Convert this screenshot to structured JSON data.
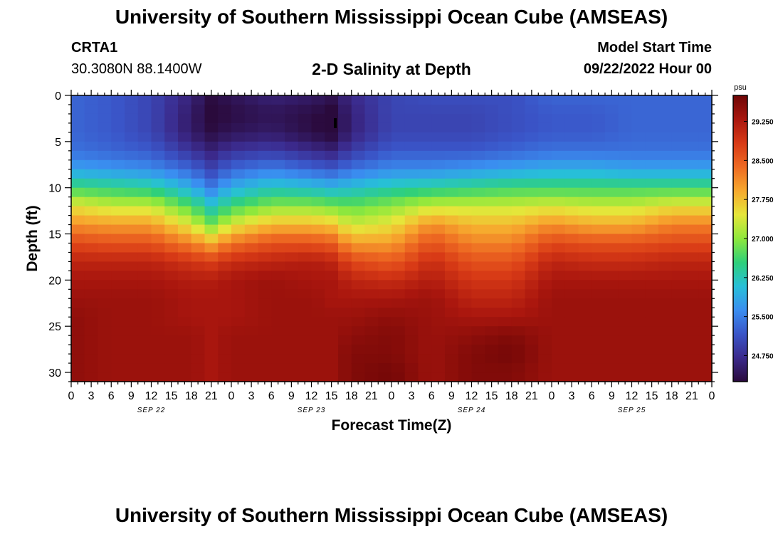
{
  "header": {
    "title": "University of Southern Mississippi Ocean Cube (AMSEAS)",
    "station_id": "CRTA1",
    "coordinates": "30.3080N  88.1400W",
    "subtitle": "2-D Salinity at Depth",
    "model_start_label": "Model Start Time",
    "model_start_value": "09/22/2022 Hour 00"
  },
  "footer": {
    "title": "University of Southern Mississippi Ocean Cube (AMSEAS)"
  },
  "chart_data": {
    "type": "heatmap",
    "title": "2-D Salinity at Depth",
    "xlabel": "Forecast Time(Z)",
    "ylabel": "Depth (ft)",
    "units": "psu",
    "xlim": [
      0,
      96
    ],
    "ylim": [
      31,
      0
    ],
    "x_tick_values": [
      0,
      3,
      6,
      9,
      12,
      15,
      18,
      21,
      24,
      27,
      30,
      33,
      36,
      39,
      42,
      45,
      48,
      51,
      54,
      57,
      60,
      63,
      66,
      69,
      72,
      75,
      78,
      81,
      84,
      87,
      90,
      93,
      96
    ],
    "x_tick_labels": [
      "0",
      "3",
      "6",
      "9",
      "12",
      "15",
      "18",
      "21",
      "0",
      "3",
      "6",
      "9",
      "12",
      "15",
      "18",
      "21",
      "0",
      "3",
      "6",
      "9",
      "12",
      "15",
      "18",
      "21",
      "0",
      "3",
      "6",
      "9",
      "12",
      "15",
      "18",
      "21",
      "0"
    ],
    "y_ticks": [
      0,
      5,
      10,
      15,
      20,
      25,
      30
    ],
    "day_labels": [
      {
        "label": "SEP 22",
        "x": 12
      },
      {
        "label": "SEP 23",
        "x": 36
      },
      {
        "label": "SEP 24",
        "x": 60
      },
      {
        "label": "SEP 25",
        "x": 84
      }
    ],
    "colorbar": {
      "min": 24.25,
      "max": 29.75,
      "tick_values": [
        24.75,
        25.5,
        26.25,
        27.0,
        27.75,
        28.5,
        29.25
      ],
      "tick_labels": [
        "24.750",
        "25.500",
        "26.250",
        "27.000",
        "27.750",
        "28.500",
        "29.250"
      ]
    },
    "colors": [
      "#2a0a3c",
      "#3b2a8c",
      "#3a55c8",
      "#3a8ef0",
      "#27c0d8",
      "#2fd07a",
      "#8fe83c",
      "#e6e63a",
      "#f7a92e",
      "#ee6a22",
      "#d83a16",
      "#a9160e",
      "#6e0606"
    ],
    "depths": [
      0,
      2,
      4,
      6,
      8,
      10,
      12,
      14,
      16,
      18,
      20,
      22,
      24,
      26,
      28,
      30
    ],
    "series": [
      {
        "name": "hour 0",
        "time": 0,
        "values": [
          25.3,
          25.3,
          25.3,
          25.4,
          25.8,
          26.6,
          27.5,
          28.1,
          28.7,
          29.1,
          29.3,
          29.4,
          29.5,
          29.5,
          29.5,
          29.5
        ]
      },
      {
        "name": "hour 6",
        "time": 6,
        "values": [
          25.2,
          25.2,
          25.2,
          25.3,
          25.7,
          26.5,
          27.3,
          28.0,
          28.6,
          29.1,
          29.3,
          29.4,
          29.4,
          29.4,
          29.4,
          29.4
        ]
      },
      {
        "name": "hour 12",
        "time": 12,
        "values": [
          25.0,
          25.0,
          25.0,
          25.2,
          25.6,
          26.4,
          27.3,
          28.0,
          28.6,
          29.1,
          29.3,
          29.4,
          29.4,
          29.4,
          29.4,
          29.4
        ]
      },
      {
        "name": "hour 18",
        "time": 18,
        "values": [
          24.6,
          24.5,
          24.5,
          24.8,
          25.3,
          25.9,
          26.7,
          27.4,
          28.2,
          28.9,
          29.2,
          29.3,
          29.3,
          29.4,
          29.4,
          29.4
        ]
      },
      {
        "name": "hour 21",
        "time": 21,
        "values": [
          24.3,
          24.2,
          24.3,
          24.6,
          25.0,
          25.5,
          26.2,
          26.9,
          27.9,
          28.8,
          29.2,
          29.3,
          29.3,
          29.3,
          29.3,
          29.3
        ]
      },
      {
        "name": "hour 24",
        "time": 24,
        "values": [
          24.4,
          24.3,
          24.4,
          24.8,
          25.3,
          25.9,
          26.6,
          27.4,
          28.3,
          29.0,
          29.3,
          29.3,
          29.3,
          29.4,
          29.4,
          29.4
        ]
      },
      {
        "name": "hour 30",
        "time": 30,
        "values": [
          24.6,
          24.4,
          24.5,
          24.9,
          25.5,
          26.2,
          27.0,
          27.8,
          28.6,
          29.1,
          29.4,
          29.4,
          29.4,
          29.4,
          29.4,
          29.4
        ]
      },
      {
        "name": "hour 36",
        "time": 36,
        "values": [
          24.5,
          24.3,
          24.3,
          24.7,
          25.3,
          26.1,
          27.0,
          27.8,
          28.6,
          29.2,
          29.3,
          29.4,
          29.4,
          29.4,
          29.4,
          29.4
        ]
      },
      {
        "name": "hour 39",
        "time": 39,
        "values": [
          24.4,
          24.2,
          24.2,
          24.6,
          25.2,
          26.0,
          26.9,
          27.7,
          28.5,
          29.1,
          29.3,
          29.3,
          29.4,
          29.4,
          29.4,
          29.4
        ]
      },
      {
        "name": "hour 42",
        "time": 42,
        "values": [
          24.7,
          24.6,
          24.6,
          24.9,
          25.4,
          26.1,
          26.8,
          27.3,
          28.0,
          28.7,
          29.1,
          29.3,
          29.4,
          29.5,
          29.6,
          29.6
        ]
      },
      {
        "name": "hour 48",
        "time": 48,
        "values": [
          25.0,
          25.0,
          25.0,
          25.2,
          25.6,
          26.3,
          27.0,
          27.5,
          28.0,
          28.5,
          29.0,
          29.3,
          29.5,
          29.6,
          29.6,
          29.7
        ]
      },
      {
        "name": "hour 54",
        "time": 54,
        "values": [
          25.1,
          25.0,
          25.0,
          25.2,
          25.6,
          26.4,
          27.3,
          28.1,
          28.6,
          29.0,
          29.2,
          29.4,
          29.4,
          29.4,
          29.4,
          29.4
        ]
      },
      {
        "name": "hour 60",
        "time": 60,
        "values": [
          25.1,
          25.0,
          25.0,
          25.2,
          25.7,
          26.5,
          27.3,
          27.8,
          28.2,
          28.6,
          28.9,
          29.1,
          29.3,
          29.5,
          29.6,
          29.6
        ]
      },
      {
        "name": "hour 66",
        "time": 66,
        "values": [
          25.1,
          25.1,
          25.1,
          25.3,
          25.8,
          26.6,
          27.3,
          27.8,
          28.2,
          28.6,
          28.9,
          29.1,
          29.3,
          29.6,
          29.7,
          29.6
        ]
      },
      {
        "name": "hour 72",
        "time": 72,
        "values": [
          25.3,
          25.2,
          25.2,
          25.4,
          25.9,
          26.6,
          27.4,
          28.1,
          28.7,
          29.1,
          29.3,
          29.4,
          29.4,
          29.4,
          29.4,
          29.4
        ]
      },
      {
        "name": "hour 78",
        "time": 78,
        "values": [
          25.3,
          25.2,
          25.2,
          25.4,
          25.9,
          26.6,
          27.3,
          27.9,
          28.6,
          29.0,
          29.3,
          29.4,
          29.4,
          29.4,
          29.4,
          29.4
        ]
      },
      {
        "name": "hour 84",
        "time": 84,
        "values": [
          25.3,
          25.3,
          25.3,
          25.4,
          25.8,
          26.6,
          27.3,
          27.9,
          28.6,
          29.0,
          29.3,
          29.4,
          29.4,
          29.4,
          29.4,
          29.4
        ]
      },
      {
        "name": "hour 90",
        "time": 90,
        "values": [
          25.3,
          25.3,
          25.3,
          25.4,
          25.8,
          26.6,
          27.5,
          28.2,
          28.7,
          29.1,
          29.3,
          29.4,
          29.4,
          29.4,
          29.4,
          29.4
        ]
      },
      {
        "name": "hour 96",
        "time": 96,
        "values": [
          25.3,
          25.3,
          25.3,
          25.4,
          25.8,
          26.6,
          27.5,
          28.2,
          28.7,
          29.1,
          29.3,
          29.4,
          29.4,
          29.4,
          29.4,
          29.4
        ]
      }
    ]
  }
}
